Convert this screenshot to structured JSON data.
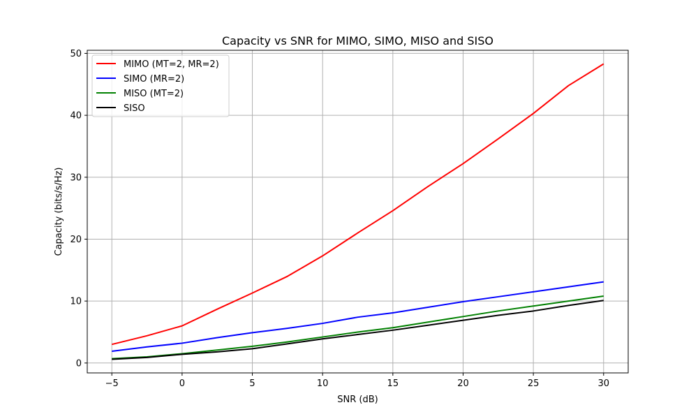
{
  "chart_data": {
    "type": "line",
    "title": "Capacity vs SNR for MIMO, SIMO, MISO and SISO",
    "xlabel": "SNR (dB)",
    "ylabel": "Capacity (bits/s/Hz)",
    "xlim": [
      -6.75,
      31.75
    ],
    "ylim": [
      -1.6,
      50.5
    ],
    "xticks": [
      -5,
      0,
      5,
      10,
      15,
      20,
      25,
      30
    ],
    "yticks": [
      0,
      10,
      20,
      30,
      40,
      50
    ],
    "xtick_labels": [
      "−5",
      "0",
      "5",
      "10",
      "15",
      "20",
      "25",
      "30"
    ],
    "ytick_labels": [
      "0",
      "10",
      "20",
      "30",
      "40",
      "50"
    ],
    "grid": true,
    "legend": "top-left",
    "x": [
      -5,
      -2.5,
      0,
      2.5,
      5,
      7.5,
      10,
      12.5,
      15,
      17.5,
      20,
      22.5,
      25,
      27.5,
      30
    ],
    "series": [
      {
        "name": "MIMO (MT=2, MR=2)",
        "color": "#ff0000",
        "values": [
          3.0,
          4.4,
          6.0,
          8.7,
          11.3,
          14.0,
          17.3,
          21.0,
          24.6,
          28.5,
          32.2,
          36.2,
          40.3,
          44.8,
          48.3
        ]
      },
      {
        "name": "SIMO (MR=2)",
        "color": "#0000ff",
        "values": [
          1.9,
          2.6,
          3.2,
          4.1,
          4.9,
          5.6,
          6.4,
          7.4,
          8.1,
          9.0,
          9.9,
          10.7,
          11.5,
          12.3,
          13.1
        ]
      },
      {
        "name": "MISO (MT=2)",
        "color": "#008000",
        "values": [
          0.7,
          1.0,
          1.5,
          2.1,
          2.7,
          3.4,
          4.2,
          5.0,
          5.7,
          6.6,
          7.5,
          8.4,
          9.2,
          10.0,
          10.8
        ]
      },
      {
        "name": "SISO",
        "color": "#000000",
        "values": [
          0.6,
          0.9,
          1.4,
          1.8,
          2.3,
          3.1,
          3.9,
          4.6,
          5.3,
          6.1,
          6.9,
          7.7,
          8.4,
          9.3,
          10.1
        ]
      }
    ]
  }
}
